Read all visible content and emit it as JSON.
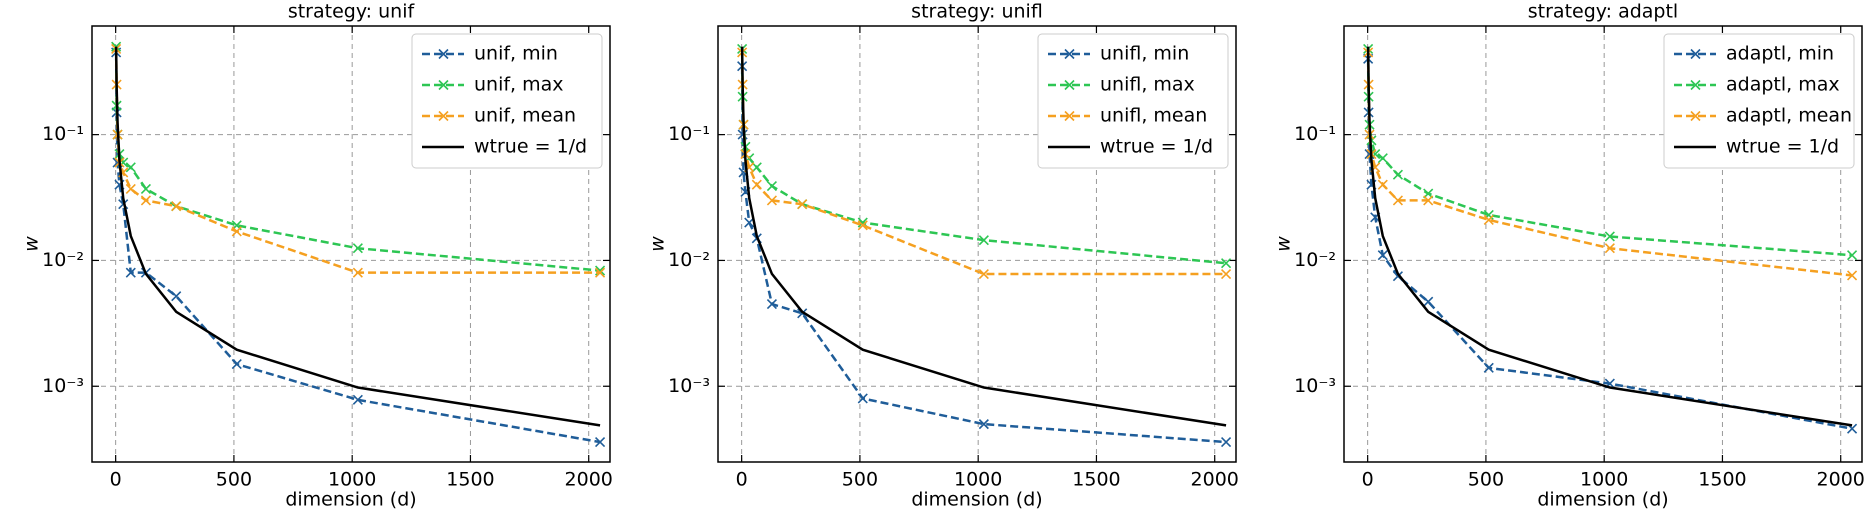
{
  "chart_data": [
    {
      "type": "line",
      "title": "strategy: unif",
      "xlabel": "dimension (d)",
      "ylabel": "w",
      "x": [
        2,
        4,
        8,
        16,
        32,
        64,
        128,
        256,
        512,
        1024,
        2048
      ],
      "series": [
        {
          "name": "unif, min",
          "color": "#1f5d99",
          "marker": "x",
          "dashed": true,
          "values": [
            0.45,
            0.15,
            0.06,
            0.04,
            0.028,
            0.008,
            0.008,
            0.0052,
            0.0015,
            0.00078,
            0.00036
          ]
        },
        {
          "name": "unif, max",
          "color": "#2dc653",
          "marker": "x",
          "dashed": true,
          "values": [
            0.5,
            0.17,
            0.1,
            0.07,
            0.06,
            0.055,
            0.037,
            0.027,
            0.019,
            0.0125,
            0.0083
          ]
        },
        {
          "name": "unif, mean",
          "color": "#f5a020",
          "marker": "x",
          "dashed": true,
          "values": [
            0.48,
            0.25,
            0.1,
            0.06,
            0.05,
            0.037,
            0.03,
            0.027,
            0.017,
            0.008,
            0.008
          ]
        },
        {
          "name": "wtrue = 1/d",
          "color": "#000000",
          "marker": "none",
          "dashed": false,
          "values": [
            0.5,
            0.25,
            0.125,
            0.0625,
            0.03125,
            0.015625,
            0.0078125,
            0.00390625,
            0.001953125,
            0.0009765625,
            0.00048828125
          ]
        }
      ],
      "xlim": [
        -100,
        2090
      ],
      "ylim": [
        0.00025,
        0.73
      ],
      "log_y": true,
      "grid": true,
      "legend": "upper right",
      "xticks": [
        0,
        500,
        1000,
        1500,
        2000
      ],
      "yticks": [
        {
          "value": 0.001,
          "label": "10⁻³"
        },
        {
          "value": 0.01,
          "label": "10⁻²"
        },
        {
          "value": 0.1,
          "label": "10⁻¹"
        }
      ]
    },
    {
      "type": "line",
      "title": "strategy: unifl",
      "xlabel": "dimension (d)",
      "ylabel": "w",
      "x": [
        2,
        4,
        8,
        16,
        32,
        64,
        128,
        256,
        512,
        1024,
        2048
      ],
      "series": [
        {
          "name": "unifl, min",
          "color": "#1f5d99",
          "marker": "x",
          "dashed": true,
          "values": [
            0.35,
            0.1,
            0.05,
            0.035,
            0.02,
            0.015,
            0.0045,
            0.0038,
            0.0008,
            0.0005,
            0.00036
          ]
        },
        {
          "name": "unifl, max",
          "color": "#2dc653",
          "marker": "x",
          "dashed": true,
          "values": [
            0.48,
            0.2,
            0.12,
            0.08,
            0.065,
            0.055,
            0.039,
            0.028,
            0.02,
            0.0145,
            0.0095
          ]
        },
        {
          "name": "unifl, mean",
          "color": "#f5a020",
          "marker": "x",
          "dashed": true,
          "values": [
            0.45,
            0.25,
            0.12,
            0.07,
            0.055,
            0.04,
            0.03,
            0.028,
            0.019,
            0.0078,
            0.0078
          ]
        },
        {
          "name": "wtrue = 1/d",
          "color": "#000000",
          "marker": "none",
          "dashed": false,
          "values": [
            0.5,
            0.25,
            0.125,
            0.0625,
            0.03125,
            0.015625,
            0.0078125,
            0.00390625,
            0.001953125,
            0.0009765625,
            0.00048828125
          ]
        }
      ],
      "xlim": [
        -100,
        2090
      ],
      "ylim": [
        0.00025,
        0.73
      ],
      "log_y": true,
      "grid": true,
      "legend": "upper right",
      "xticks": [
        0,
        500,
        1000,
        1500,
        2000
      ],
      "yticks": [
        {
          "value": 0.001,
          "label": "10⁻³"
        },
        {
          "value": 0.01,
          "label": "10⁻²"
        },
        {
          "value": 0.1,
          "label": "10⁻¹"
        }
      ]
    },
    {
      "type": "line",
      "title": "strategy: adaptl",
      "xlabel": "dimension (d)",
      "ylabel": "w",
      "x": [
        2,
        4,
        8,
        16,
        32,
        64,
        128,
        256,
        512,
        1024,
        2048
      ],
      "series": [
        {
          "name": "adaptl, min",
          "color": "#1f5d99",
          "marker": "x",
          "dashed": true,
          "values": [
            0.4,
            0.15,
            0.07,
            0.04,
            0.022,
            0.011,
            0.0075,
            0.0047,
            0.0014,
            0.00105,
            0.00046
          ]
        },
        {
          "name": "adaptl, max",
          "color": "#2dc653",
          "marker": "x",
          "dashed": true,
          "values": [
            0.48,
            0.2,
            0.12,
            0.09,
            0.07,
            0.065,
            0.048,
            0.034,
            0.023,
            0.0155,
            0.011
          ]
        },
        {
          "name": "adaptl, mean",
          "color": "#f5a020",
          "marker": "x",
          "dashed": true,
          "values": [
            0.45,
            0.25,
            0.1,
            0.07,
            0.055,
            0.04,
            0.03,
            0.03,
            0.021,
            0.0125,
            0.0076
          ]
        },
        {
          "name": "wtrue = 1/d",
          "color": "#000000",
          "marker": "none",
          "dashed": false,
          "values": [
            0.5,
            0.25,
            0.125,
            0.0625,
            0.03125,
            0.015625,
            0.0078125,
            0.00390625,
            0.001953125,
            0.0009765625,
            0.00048828125
          ]
        }
      ],
      "xlim": [
        -100,
        2090
      ],
      "ylim": [
        0.00025,
        0.73
      ],
      "log_y": true,
      "grid": true,
      "legend": "upper right",
      "xticks": [
        0,
        500,
        1000,
        1500,
        2000
      ],
      "yticks": [
        {
          "value": 0.001,
          "label": "10⁻³"
        },
        {
          "value": 0.01,
          "label": "10⁻²"
        },
        {
          "value": 0.1,
          "label": "10⁻¹"
        }
      ]
    }
  ]
}
